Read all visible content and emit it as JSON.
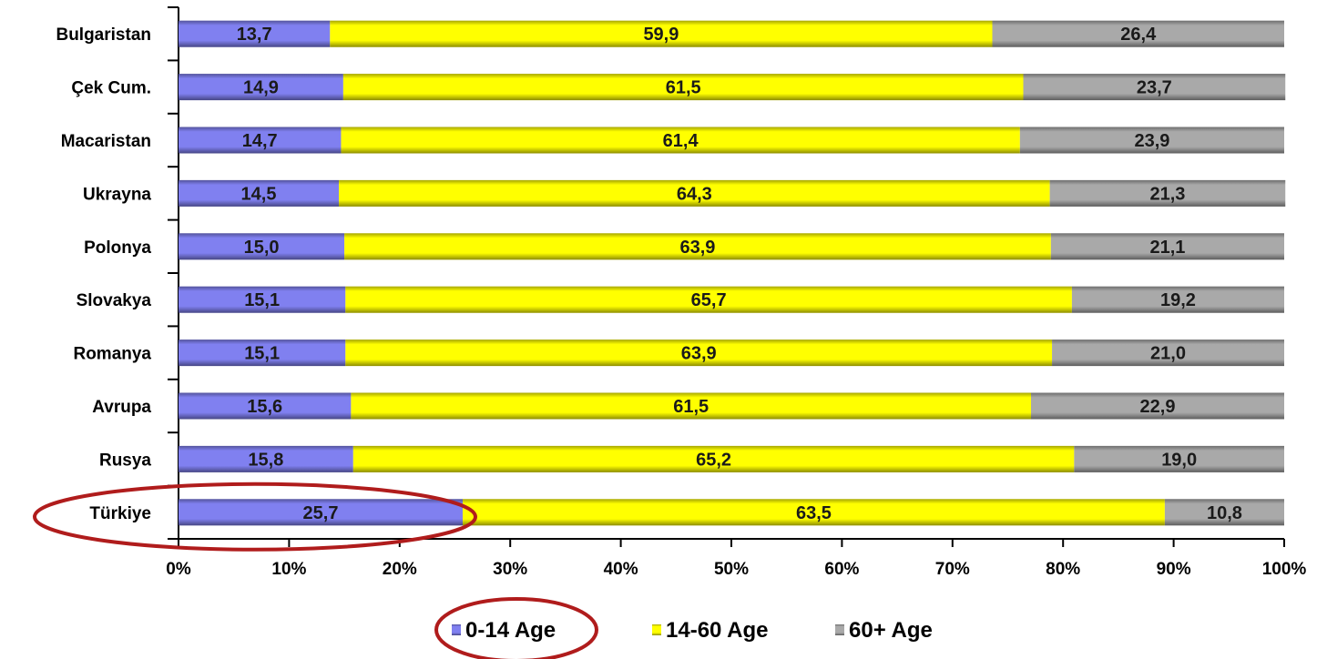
{
  "chart_data": {
    "type": "bar",
    "orientation": "horizontal",
    "stacked": true,
    "percent_stacked": true,
    "categories": [
      "Bulgaristan",
      "Çek Cum.",
      "Macaristan",
      "Ukrayna",
      "Polonya",
      "Slovakya",
      "Romanya",
      "Avrupa",
      "Rusya",
      "Türkiye"
    ],
    "series": [
      {
        "name": "0-14 Age",
        "color": "#8080f0",
        "values": [
          13.7,
          14.9,
          14.7,
          14.5,
          15.0,
          15.1,
          15.1,
          15.6,
          15.8,
          25.7
        ],
        "labels": [
          "13,7",
          "14,9",
          "14,7",
          "14,5",
          "15,0",
          "15,1",
          "15,1",
          "15,6",
          "15,8",
          "25,7"
        ]
      },
      {
        "name": "14-60 Age",
        "color": "#ffff00",
        "values": [
          59.9,
          61.5,
          61.4,
          64.3,
          63.9,
          65.7,
          63.9,
          61.5,
          65.2,
          63.5
        ],
        "labels": [
          "59,9",
          "61,5",
          "61,4",
          "64,3",
          "63,9",
          "65,7",
          "63,9",
          "61,5",
          "65,2",
          "63,5"
        ]
      },
      {
        "name": "60+ Age",
        "color": "#a9a9a9",
        "values": [
          26.4,
          23.7,
          23.9,
          21.3,
          21.1,
          19.2,
          21.0,
          22.9,
          19.0,
          10.8
        ],
        "labels": [
          "26,4",
          "23,7",
          "23,9",
          "21,3",
          "21,1",
          "19,2",
          "21,0",
          "22,9",
          "19,0",
          "10,8"
        ]
      }
    ],
    "x_ticks": [
      "0%",
      "10%",
      "20%",
      "30%",
      "40%",
      "50%",
      "60%",
      "70%",
      "80%",
      "90%",
      "100%"
    ],
    "xlim": [
      0,
      100
    ],
    "title": "",
    "xlabel": "",
    "ylabel": "",
    "grid": false,
    "legend": {
      "placement": "bottom-center"
    },
    "annotations": [
      {
        "type": "ellipse",
        "color": "#b01c1c",
        "target": "Türkiye 0-14 Age bar"
      },
      {
        "type": "ellipse",
        "color": "#b01c1c",
        "target": "legend 0-14 Age"
      }
    ]
  }
}
